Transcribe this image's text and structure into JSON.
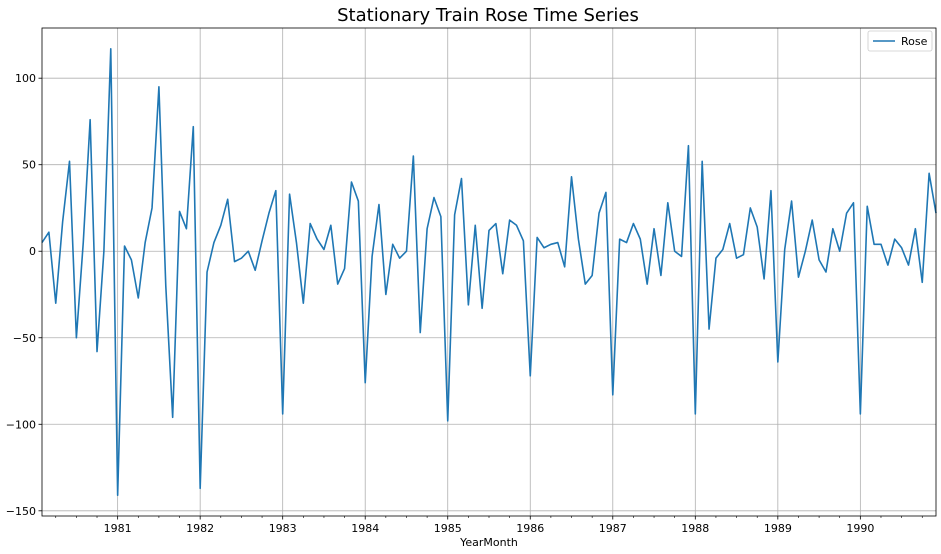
{
  "chart_data": {
    "type": "line",
    "title": "Stationary Train Rose Time Series",
    "xlabel": "YearMonth",
    "ylabel": "",
    "x_start": "1980-02",
    "x_end": "1990-12",
    "x_ticks": [
      {
        "label": "1981",
        "month_index": 11
      },
      {
        "label": "1982",
        "month_index": 23
      },
      {
        "label": "1983",
        "month_index": 35
      },
      {
        "label": "1984",
        "month_index": 47
      },
      {
        "label": "1985",
        "month_index": 59
      },
      {
        "label": "1986",
        "month_index": 71
      },
      {
        "label": "1987",
        "month_index": 83
      },
      {
        "label": "1988",
        "month_index": 95
      },
      {
        "label": "1989",
        "month_index": 107
      },
      {
        "label": "1990",
        "month_index": 119
      }
    ],
    "y_ticks": [
      100,
      50,
      0,
      -50,
      -100,
      -150
    ],
    "y_tick_labels": [
      "100",
      "50",
      "0",
      "−50",
      "−100",
      "−150"
    ],
    "ylim": [
      -153,
      129
    ],
    "grid": true,
    "legend_position": "top-right",
    "series": [
      {
        "name": "Rose",
        "color": "#1f77b4",
        "values": [
          5,
          11,
          -30,
          17,
          52,
          -50,
          5,
          76,
          -58,
          0,
          117,
          -141,
          3,
          -5,
          -27,
          5,
          25,
          95,
          -20,
          -96,
          23,
          13,
          72,
          -137,
          -12,
          5,
          15,
          30,
          -6,
          -4,
          0,
          -11,
          6,
          22,
          35,
          -94,
          33,
          5,
          -30,
          16,
          7,
          1,
          15,
          -19,
          -10,
          40,
          29,
          -76,
          -3,
          27,
          -25,
          4,
          -4,
          0,
          55,
          -47,
          13,
          31,
          20,
          -98,
          21,
          42,
          -31,
          15,
          -33,
          12,
          16,
          -13,
          18,
          15,
          6,
          -72,
          8,
          2,
          4,
          5,
          -9,
          43,
          7,
          -19,
          -14,
          22,
          34,
          -83,
          7,
          5,
          16,
          7,
          -19,
          13,
          -14,
          28,
          0,
          -3,
          61,
          -94,
          52,
          -45,
          -4,
          1,
          16,
          -4,
          -2,
          25,
          14,
          -16,
          35,
          -64,
          1,
          29,
          -15,
          0,
          18,
          -5,
          -12,
          13,
          0,
          22,
          28,
          -94,
          26,
          4,
          4,
          -8,
          7,
          2,
          -8,
          13,
          -18,
          45,
          22
        ]
      }
    ]
  }
}
